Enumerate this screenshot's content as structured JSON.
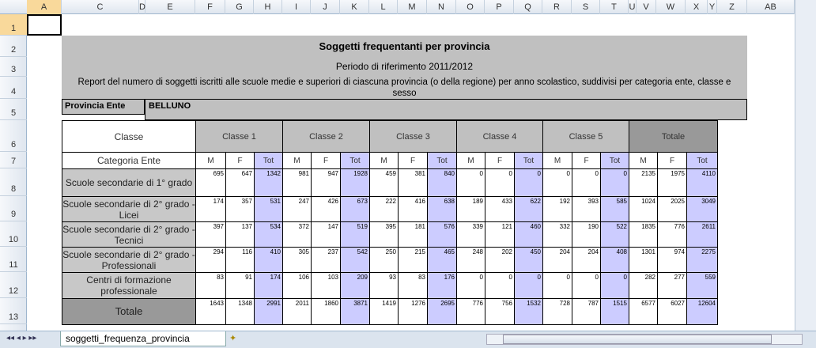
{
  "columns": [
    "A",
    "C",
    "D",
    "E",
    "F",
    "G",
    "H",
    "I",
    "J",
    "K",
    "L",
    "M",
    "N",
    "O",
    "P",
    "Q",
    "R",
    "S",
    "T",
    "U",
    "V",
    "W",
    "X",
    "Y",
    "Z",
    "AB"
  ],
  "rows": [
    "1",
    "2",
    "3",
    "4",
    "5",
    "6",
    "7",
    "8",
    "9",
    "10",
    "11",
    "12",
    "13"
  ],
  "report": {
    "title": "Soggetti frequentanti per provincia",
    "period": "Periodo di riferimento 2011/2012",
    "description": "Report del numero di soggetti iscritti alle scuole medie e superiori di ciascuna provincia (o della regione) per anno scolastico, suddivisi per categoria ente, classe e sesso",
    "provincia_label": "Provincia Ente",
    "provincia_value": "BELLUNO"
  },
  "table": {
    "classe_label": "Classe",
    "categoria_label": "Categoria Ente",
    "groups": [
      "Classe 1",
      "Classe 2",
      "Classe 3",
      "Classe 4",
      "Classe 5",
      "Totale"
    ],
    "subheaders": [
      "M",
      "F",
      "Tot"
    ],
    "rows": [
      {
        "label": "Scuole secondarie di 1° grado",
        "values": [
          695,
          647,
          1342,
          981,
          947,
          1928,
          459,
          381,
          840,
          0,
          0,
          0,
          0,
          0,
          0,
          2135,
          1975,
          4110
        ]
      },
      {
        "label": "Scuole secondarie di 2° grado - Licei",
        "values": [
          174,
          357,
          531,
          247,
          426,
          673,
          222,
          416,
          638,
          189,
          433,
          622,
          192,
          393,
          585,
          1024,
          2025,
          3049
        ]
      },
      {
        "label": "Scuole secondarie di 2° grado - Tecnici",
        "values": [
          397,
          137,
          534,
          372,
          147,
          519,
          395,
          181,
          576,
          339,
          121,
          460,
          332,
          190,
          522,
          1835,
          776,
          2611
        ]
      },
      {
        "label": "Scuole secondarie di 2° grado - Professionali",
        "values": [
          294,
          116,
          410,
          305,
          237,
          542,
          250,
          215,
          465,
          248,
          202,
          450,
          204,
          204,
          408,
          1301,
          974,
          2275
        ]
      },
      {
        "label": "Centri di formazione professionale",
        "values": [
          83,
          91,
          174,
          106,
          103,
          209,
          93,
          83,
          176,
          0,
          0,
          0,
          0,
          0,
          0,
          282,
          277,
          559
        ]
      },
      {
        "label": "Totale",
        "values": [
          1643,
          1348,
          2991,
          2011,
          1860,
          3871,
          1419,
          1276,
          2695,
          776,
          756,
          1532,
          728,
          787,
          1515,
          6577,
          6027,
          12604
        ]
      }
    ]
  },
  "sheet_tab": "soggetti_frequenza_provincia",
  "colors": {
    "tot_column": "#ccccff",
    "header_grey": "#c0c0c0",
    "total_row": "#999999"
  }
}
